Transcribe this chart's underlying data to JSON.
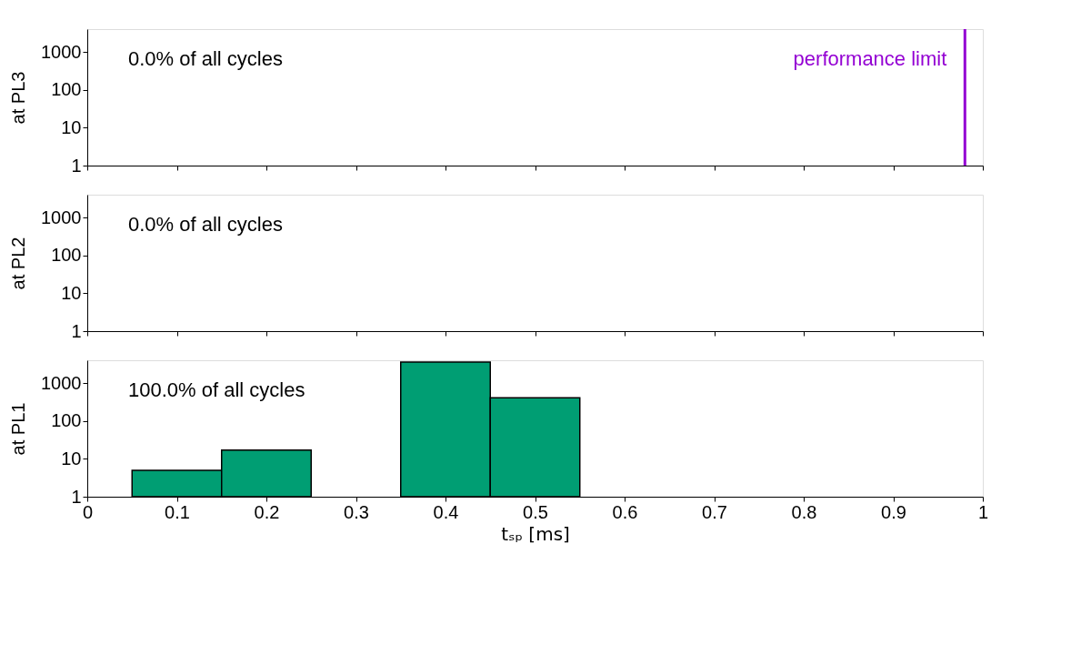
{
  "chart_data": [
    {
      "type": "histogram",
      "ylabel": "at PL3",
      "xlim": [
        0,
        1
      ],
      "xticks": [
        0,
        0.1,
        0.2,
        0.3,
        0.4,
        0.5,
        0.6,
        0.7,
        0.8,
        0.9,
        1
      ],
      "ylim": [
        1,
        4000
      ],
      "yticks": [
        1,
        10,
        100,
        1000
      ],
      "log": "y",
      "grid": false,
      "tick_labels": "y",
      "annotations": [
        "0.0% of all cycles"
      ],
      "ref_lines": [
        {
          "axis": "x",
          "value": 0.98,
          "label": "performance limit",
          "color": "#9400d3"
        }
      ]
    },
    {
      "type": "histogram",
      "ylabel": "at PL2",
      "xlim": [
        0,
        1
      ],
      "xticks": [
        0,
        0.1,
        0.2,
        0.3,
        0.4,
        0.5,
        0.6,
        0.7,
        0.8,
        0.9,
        1
      ],
      "ylim": [
        1,
        4000
      ],
      "yticks": [
        1,
        10,
        100,
        1000
      ],
      "log": "y",
      "grid": false,
      "tick_labels": "y",
      "annotations": [
        "0.0% of all cycles"
      ]
    },
    {
      "type": "histogram",
      "ylabel": "at PL1",
      "xlabel": "tₛₚ [ms]",
      "bins": [
        0.05,
        0.15,
        0.25,
        0.35,
        0.45,
        0.55
      ],
      "values": [
        5,
        17,
        null,
        3600,
        410
      ],
      "color": "#009e73",
      "xlim": [
        0,
        1
      ],
      "xticks": [
        0,
        0.1,
        0.2,
        0.3,
        0.4,
        0.5,
        0.6,
        0.7,
        0.8,
        0.9,
        1
      ],
      "ylim": [
        1,
        4000
      ],
      "yticks": [
        1,
        10,
        100,
        1000
      ],
      "log": "y",
      "grid": false,
      "annotations": [
        "100.0% of all cycles"
      ]
    }
  ]
}
